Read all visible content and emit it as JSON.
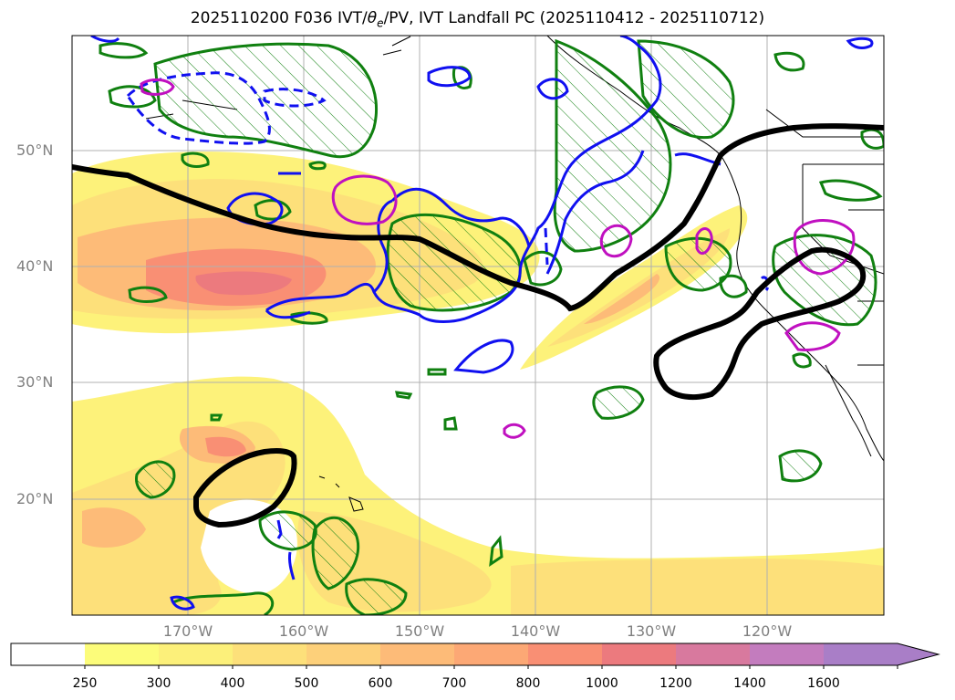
{
  "title": "2025110200 F036 IVT/θe/PV, IVT Landfall PC (2025110412 - 2025110712)",
  "latitude_labels": [
    "50°N",
    "40°N",
    "30°N",
    "20°N"
  ],
  "longitude_labels": [
    "170°W",
    "160°W",
    "150°W",
    "140°W",
    "130°W",
    "120°W"
  ],
  "colorbar": {
    "labels": [
      "250",
      "300",
      "400",
      "500",
      "600",
      "700",
      "800",
      "1000",
      "1200",
      "1400",
      "1600"
    ],
    "colors": [
      "#ffffff",
      "#fcfc7a",
      "#fcf07a",
      "#fde07a",
      "#fdd07a",
      "#fdbb78",
      "#fca875",
      "#f98f74",
      "#ec7a7e",
      "#d8799e",
      "#c37cbe",
      "#a97ec7"
    ]
  },
  "colors": {
    "ivt_light": "#fdf27a",
    "ivt_mid": "#fcd47a",
    "ivt_high": "#f8a674",
    "ivt_core": "#f07d78",
    "pc_contour": "#000000",
    "pv_green": "#108010",
    "theta_blue": "#1010f0",
    "magenta": "#c010c0",
    "coast": "#000000",
    "grid": "#b0b0b0"
  }
}
